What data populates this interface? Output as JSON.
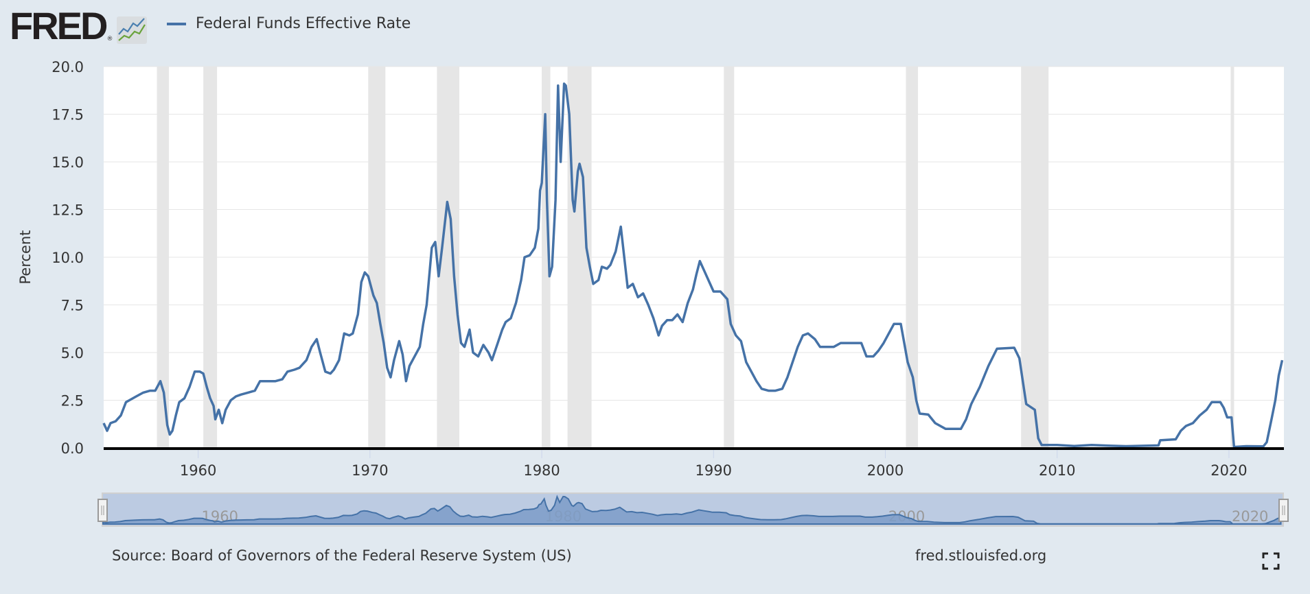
{
  "header": {
    "logo_text": "FRED",
    "legend_label": "Federal Funds Effective Rate"
  },
  "footer": {
    "source": "Source: Board of Governors of the Federal Reserve System (US)",
    "site": "fred.stlouisfed.org"
  },
  "colors": {
    "line": "#4572a7",
    "recession": "#e6e6e6",
    "background": "#e1e9f0",
    "navigator_fill": "#bccbe2"
  },
  "icons": {
    "fullscreen": "fullscreen-icon"
  },
  "chart_data": {
    "type": "line",
    "title": "Federal Funds Effective Rate",
    "xlabel": "",
    "ylabel": "Percent",
    "xlim": [
      1954.5,
      2023.2
    ],
    "ylim": [
      0,
      20
    ],
    "grid": true,
    "legend": "top-left",
    "yticks": [
      "0.0",
      "2.5",
      "5.0",
      "7.5",
      "10.0",
      "12.5",
      "15.0",
      "17.5",
      "20.0"
    ],
    "xticks": [
      "1960",
      "1970",
      "1980",
      "1990",
      "2000",
      "2010",
      "2020"
    ],
    "navigator_labels": [
      "1960",
      "1980",
      "2000",
      "2020"
    ],
    "recessions": [
      [
        1957.6,
        1958.3
      ],
      [
        1960.3,
        1961.1
      ],
      [
        1969.9,
        1970.9
      ],
      [
        1973.9,
        1975.2
      ],
      [
        1980.0,
        1980.5
      ],
      [
        1981.5,
        1982.9
      ],
      [
        1990.6,
        1991.2
      ],
      [
        2001.2,
        2001.9
      ],
      [
        2007.9,
        2009.5
      ],
      [
        2020.1,
        2020.3
      ]
    ],
    "series": [
      {
        "name": "Federal Funds Effective Rate",
        "points": [
          [
            1954.5,
            1.3
          ],
          [
            1954.7,
            0.9
          ],
          [
            1954.9,
            1.3
          ],
          [
            1955.2,
            1.4
          ],
          [
            1955.5,
            1.7
          ],
          [
            1955.8,
            2.4
          ],
          [
            1956.0,
            2.5
          ],
          [
            1956.4,
            2.7
          ],
          [
            1956.8,
            2.9
          ],
          [
            1957.2,
            3.0
          ],
          [
            1957.5,
            3.0
          ],
          [
            1957.8,
            3.5
          ],
          [
            1958.0,
            2.9
          ],
          [
            1958.2,
            1.2
          ],
          [
            1958.35,
            0.7
          ],
          [
            1958.5,
            0.9
          ],
          [
            1958.7,
            1.7
          ],
          [
            1958.9,
            2.4
          ],
          [
            1959.2,
            2.6
          ],
          [
            1959.5,
            3.2
          ],
          [
            1959.8,
            4.0
          ],
          [
            1960.1,
            4.0
          ],
          [
            1960.3,
            3.9
          ],
          [
            1960.5,
            3.2
          ],
          [
            1960.7,
            2.6
          ],
          [
            1960.9,
            2.2
          ],
          [
            1961.0,
            1.5
          ],
          [
            1961.2,
            2.0
          ],
          [
            1961.4,
            1.3
          ],
          [
            1961.6,
            2.0
          ],
          [
            1961.9,
            2.5
          ],
          [
            1962.2,
            2.7
          ],
          [
            1962.5,
            2.8
          ],
          [
            1962.9,
            2.9
          ],
          [
            1963.3,
            3.0
          ],
          [
            1963.6,
            3.5
          ],
          [
            1964.0,
            3.5
          ],
          [
            1964.5,
            3.5
          ],
          [
            1964.9,
            3.6
          ],
          [
            1965.2,
            4.0
          ],
          [
            1965.6,
            4.1
          ],
          [
            1965.9,
            4.2
          ],
          [
            1966.3,
            4.6
          ],
          [
            1966.6,
            5.3
          ],
          [
            1966.9,
            5.7
          ],
          [
            1967.1,
            5.0
          ],
          [
            1967.4,
            4.0
          ],
          [
            1967.7,
            3.9
          ],
          [
            1967.9,
            4.1
          ],
          [
            1968.2,
            4.6
          ],
          [
            1968.5,
            6.0
          ],
          [
            1968.8,
            5.9
          ],
          [
            1969.0,
            6.0
          ],
          [
            1969.3,
            7.0
          ],
          [
            1969.5,
            8.7
          ],
          [
            1969.7,
            9.2
          ],
          [
            1969.9,
            9.0
          ],
          [
            1970.2,
            8.0
          ],
          [
            1970.4,
            7.6
          ],
          [
            1970.6,
            6.5
          ],
          [
            1970.8,
            5.5
          ],
          [
            1971.0,
            4.2
          ],
          [
            1971.2,
            3.7
          ],
          [
            1971.4,
            4.6
          ],
          [
            1971.7,
            5.6
          ],
          [
            1971.9,
            4.9
          ],
          [
            1972.1,
            3.5
          ],
          [
            1972.3,
            4.3
          ],
          [
            1972.6,
            4.8
          ],
          [
            1972.9,
            5.3
          ],
          [
            1973.1,
            6.5
          ],
          [
            1973.3,
            7.5
          ],
          [
            1973.6,
            10.5
          ],
          [
            1973.8,
            10.8
          ],
          [
            1974.0,
            9.0
          ],
          [
            1974.2,
            10.5
          ],
          [
            1974.5,
            12.9
          ],
          [
            1974.7,
            12.0
          ],
          [
            1974.9,
            9.0
          ],
          [
            1975.1,
            7.0
          ],
          [
            1975.3,
            5.5
          ],
          [
            1975.5,
            5.3
          ],
          [
            1975.8,
            6.2
          ],
          [
            1976.0,
            5.0
          ],
          [
            1976.3,
            4.8
          ],
          [
            1976.6,
            5.4
          ],
          [
            1976.9,
            5.0
          ],
          [
            1977.1,
            4.6
          ],
          [
            1977.4,
            5.4
          ],
          [
            1977.7,
            6.2
          ],
          [
            1977.9,
            6.6
          ],
          [
            1978.2,
            6.8
          ],
          [
            1978.5,
            7.6
          ],
          [
            1978.8,
            8.8
          ],
          [
            1979.0,
            10.0
          ],
          [
            1979.3,
            10.1
          ],
          [
            1979.6,
            10.5
          ],
          [
            1979.8,
            11.5
          ],
          [
            1979.9,
            13.5
          ],
          [
            1980.0,
            13.9
          ],
          [
            1980.2,
            17.5
          ],
          [
            1980.3,
            13.0
          ],
          [
            1980.45,
            9.0
          ],
          [
            1980.6,
            9.5
          ],
          [
            1980.8,
            13.0
          ],
          [
            1980.95,
            19.0
          ],
          [
            1981.1,
            15.0
          ],
          [
            1981.3,
            19.1
          ],
          [
            1981.4,
            19.0
          ],
          [
            1981.6,
            17.5
          ],
          [
            1981.8,
            13.0
          ],
          [
            1981.9,
            12.4
          ],
          [
            1982.1,
            14.5
          ],
          [
            1982.2,
            14.9
          ],
          [
            1982.4,
            14.2
          ],
          [
            1982.6,
            10.5
          ],
          [
            1982.8,
            9.5
          ],
          [
            1983.0,
            8.6
          ],
          [
            1983.3,
            8.8
          ],
          [
            1983.5,
            9.5
          ],
          [
            1983.8,
            9.4
          ],
          [
            1984.0,
            9.6
          ],
          [
            1984.3,
            10.3
          ],
          [
            1984.6,
            11.6
          ],
          [
            1984.8,
            10.0
          ],
          [
            1985.0,
            8.4
          ],
          [
            1985.3,
            8.6
          ],
          [
            1985.6,
            7.9
          ],
          [
            1985.9,
            8.1
          ],
          [
            1986.2,
            7.5
          ],
          [
            1986.5,
            6.8
          ],
          [
            1986.8,
            5.9
          ],
          [
            1987.0,
            6.4
          ],
          [
            1987.3,
            6.7
          ],
          [
            1987.6,
            6.7
          ],
          [
            1987.9,
            7.0
          ],
          [
            1988.2,
            6.6
          ],
          [
            1988.5,
            7.6
          ],
          [
            1988.8,
            8.3
          ],
          [
            1989.0,
            9.1
          ],
          [
            1989.2,
            9.8
          ],
          [
            1989.5,
            9.2
          ],
          [
            1989.8,
            8.6
          ],
          [
            1990.0,
            8.2
          ],
          [
            1990.4,
            8.2
          ],
          [
            1990.8,
            7.8
          ],
          [
            1991.0,
            6.5
          ],
          [
            1991.3,
            5.9
          ],
          [
            1991.6,
            5.6
          ],
          [
            1991.9,
            4.5
          ],
          [
            1992.2,
            4.0
          ],
          [
            1992.5,
            3.5
          ],
          [
            1992.8,
            3.1
          ],
          [
            1993.2,
            3.0
          ],
          [
            1993.6,
            3.0
          ],
          [
            1994.0,
            3.1
          ],
          [
            1994.3,
            3.7
          ],
          [
            1994.6,
            4.5
          ],
          [
            1994.9,
            5.3
          ],
          [
            1995.2,
            5.9
          ],
          [
            1995.5,
            6.0
          ],
          [
            1995.9,
            5.7
          ],
          [
            1996.2,
            5.3
          ],
          [
            1996.6,
            5.3
          ],
          [
            1997.0,
            5.3
          ],
          [
            1997.4,
            5.5
          ],
          [
            1997.8,
            5.5
          ],
          [
            1998.2,
            5.5
          ],
          [
            1998.6,
            5.5
          ],
          [
            1998.9,
            4.8
          ],
          [
            1999.3,
            4.8
          ],
          [
            1999.6,
            5.1
          ],
          [
            1999.9,
            5.5
          ],
          [
            2000.2,
            6.0
          ],
          [
            2000.5,
            6.5
          ],
          [
            2000.9,
            6.5
          ],
          [
            2001.1,
            5.5
          ],
          [
            2001.3,
            4.5
          ],
          [
            2001.6,
            3.7
          ],
          [
            2001.8,
            2.5
          ],
          [
            2002.0,
            1.8
          ],
          [
            2002.5,
            1.75
          ],
          [
            2002.9,
            1.3
          ],
          [
            2003.5,
            1.0
          ],
          [
            2004.4,
            1.0
          ],
          [
            2004.7,
            1.5
          ],
          [
            2005.0,
            2.3
          ],
          [
            2005.5,
            3.2
          ],
          [
            2006.0,
            4.3
          ],
          [
            2006.5,
            5.2
          ],
          [
            2007.5,
            5.25
          ],
          [
            2007.8,
            4.7
          ],
          [
            2008.0,
            3.5
          ],
          [
            2008.2,
            2.3
          ],
          [
            2008.7,
            2.0
          ],
          [
            2008.9,
            0.5
          ],
          [
            2009.1,
            0.15
          ],
          [
            2010.0,
            0.15
          ],
          [
            2011.0,
            0.1
          ],
          [
            2012.0,
            0.15
          ],
          [
            2013.0,
            0.12
          ],
          [
            2014.0,
            0.09
          ],
          [
            2015.9,
            0.13
          ],
          [
            2016.0,
            0.4
          ],
          [
            2016.9,
            0.45
          ],
          [
            2017.2,
            0.9
          ],
          [
            2017.5,
            1.15
          ],
          [
            2017.9,
            1.3
          ],
          [
            2018.3,
            1.7
          ],
          [
            2018.7,
            2.0
          ],
          [
            2019.0,
            2.4
          ],
          [
            2019.5,
            2.4
          ],
          [
            2019.7,
            2.1
          ],
          [
            2019.9,
            1.6
          ],
          [
            2020.15,
            1.6
          ],
          [
            2020.3,
            0.05
          ],
          [
            2021.0,
            0.09
          ],
          [
            2022.0,
            0.08
          ],
          [
            2022.2,
            0.3
          ],
          [
            2022.5,
            1.6
          ],
          [
            2022.7,
            2.5
          ],
          [
            2022.9,
            3.8
          ],
          [
            2023.1,
            4.6
          ]
        ]
      }
    ]
  }
}
